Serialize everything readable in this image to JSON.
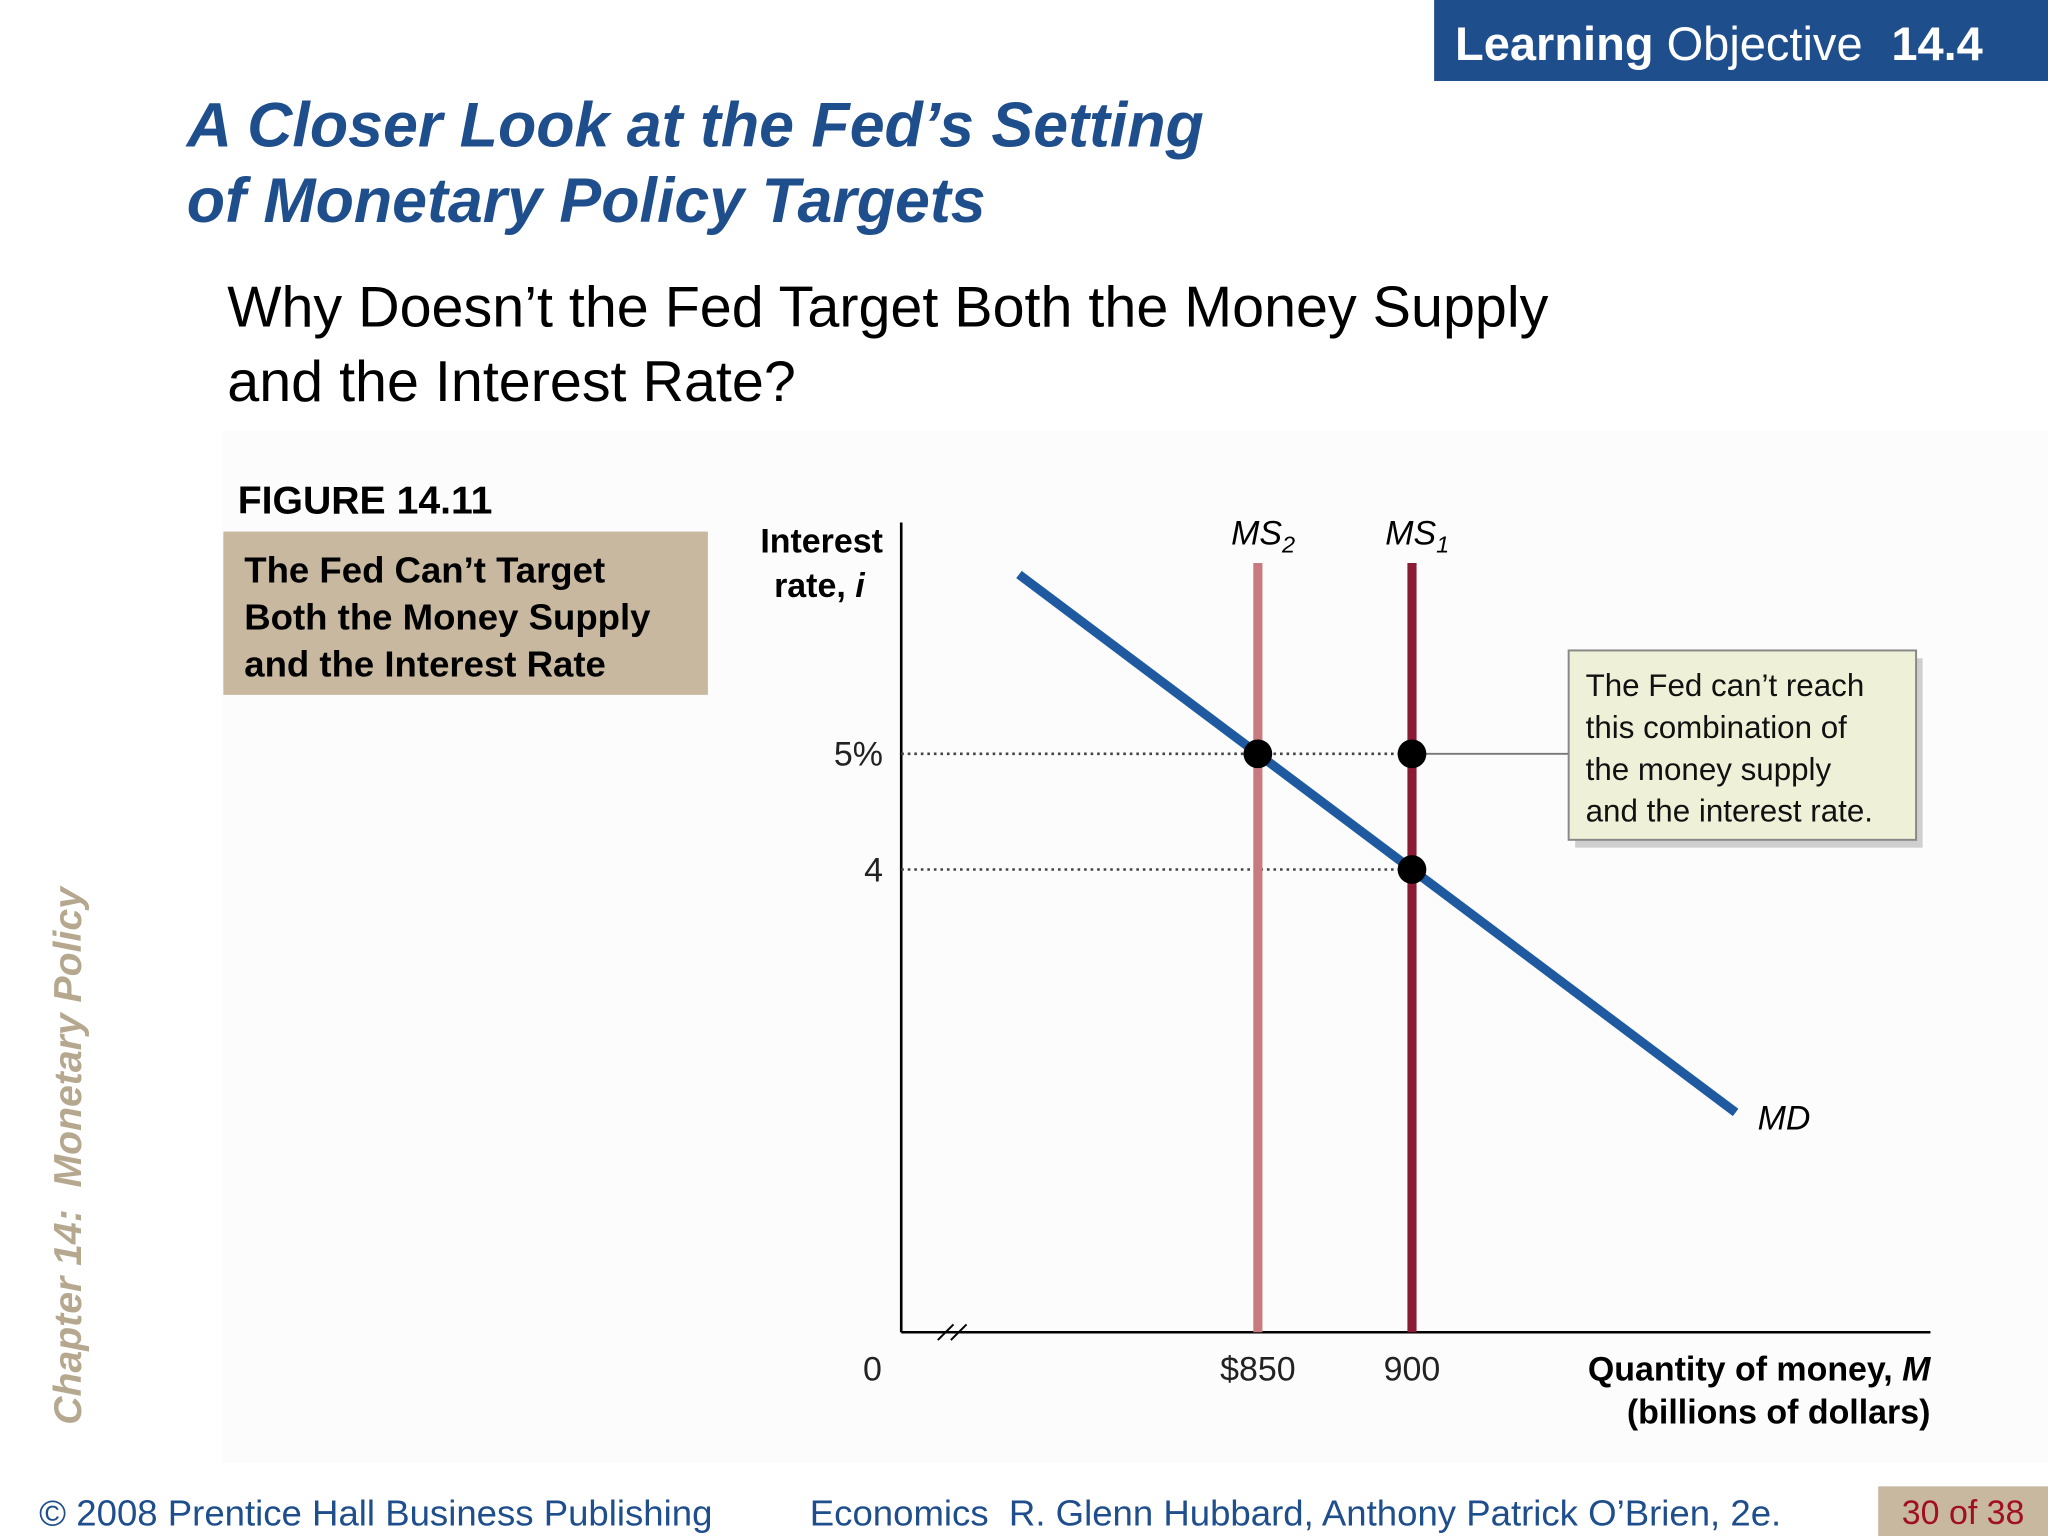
{
  "header": {
    "learning_objective": {
      "bold": "Learning",
      "text": "Objective",
      "number": "14.4"
    }
  },
  "title": [
    "A Closer Look at the Fed’s Setting",
    "of Monetary Policy Targets"
  ],
  "subtitle": [
    "Why Doesn’t the Fed Target Both the Money Supply",
    "and the Interest Rate?"
  ],
  "figure": {
    "label": "FIGURE 14.11",
    "caption": [
      "The Fed Can’t Target",
      "Both the Money Supply",
      "and the Interest Rate"
    ]
  },
  "side_label": "Chapter 14:  Monetary Policy",
  "chart_data": {
    "type": "line",
    "ylabel": [
      "Interest",
      "rate, "
    ],
    "ylabel_var": "i",
    "xlabel": [
      "Quantity of money, ",
      "(billions of dollars)"
    ],
    "xlabel_var": "M",
    "origin_label": "0",
    "axis_break": true,
    "xlim": [
      734.3,
      1068.2
    ],
    "ylim": [
      0,
      7
    ],
    "xticks": [
      {
        "value": 850,
        "label": "$850"
      },
      900
    ],
    "yticks": [
      {
        "value": 5,
        "label": "5%"
      },
      4
    ],
    "series": [
      {
        "name": "MS",
        "subscript": "2",
        "color": "#c97a80",
        "x": [
          850,
          850
        ],
        "y": [
          0,
          6.65
        ]
      },
      {
        "name": "MS",
        "subscript": "1",
        "color": "#8b1a35",
        "x": [
          900,
          900
        ],
        "y": [
          0,
          6.65
        ]
      },
      {
        "name": "MD",
        "color": "#1f5aa0",
        "x": [
          772.5,
          1005
        ],
        "y": [
          6.55,
          1.9
        ]
      }
    ],
    "points": {
      "color": "#000000",
      "x": [
        850,
        900,
        900
      ],
      "y": [
        5,
        5,
        4
      ]
    },
    "annotation": [
      "The Fed can’t reach",
      "this combination of",
      "the money supply",
      "and the interest rate."
    ]
  },
  "footer": {
    "copyright": "© 2008 Prentice Hall Business Publishing",
    "book": "Economics  R. Glenn Hubbard, Anthony Patrick O’Brien, 2e.",
    "page": "30 of 38"
  }
}
